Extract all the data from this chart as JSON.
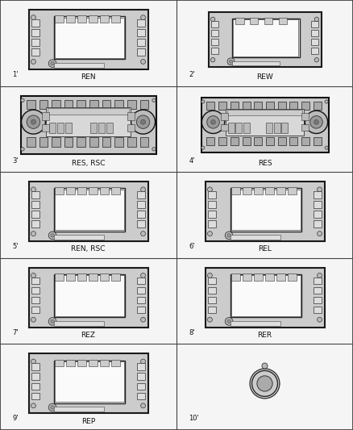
{
  "bg_color": "#f5f5f5",
  "grid_color": "#555555",
  "label_color": "#111111",
  "items": [
    {
      "num": "1",
      "label": "REN",
      "type": "nav_large",
      "row": 0,
      "col": 0
    },
    {
      "num": "2",
      "label": "REW",
      "type": "nav_small",
      "row": 0,
      "col": 1
    },
    {
      "num": "3",
      "label": "RES, RSC",
      "type": "cd_large",
      "row": 1,
      "col": 0
    },
    {
      "num": "4",
      "label": "RES",
      "type": "cd_small",
      "row": 1,
      "col": 1
    },
    {
      "num": "5",
      "label": "REN, RSC",
      "type": "nav_large",
      "row": 2,
      "col": 0
    },
    {
      "num": "6",
      "label": "REL",
      "type": "nav_small2",
      "row": 2,
      "col": 1
    },
    {
      "num": "7",
      "label": "REZ",
      "type": "nav_large",
      "row": 3,
      "col": 0
    },
    {
      "num": "8",
      "label": "RER",
      "type": "nav_small2",
      "row": 3,
      "col": 1
    },
    {
      "num": "9",
      "label": "REP",
      "type": "nav_large",
      "row": 4,
      "col": 0
    },
    {
      "num": "10",
      "label": "",
      "type": "knob",
      "row": 4,
      "col": 1
    }
  ]
}
